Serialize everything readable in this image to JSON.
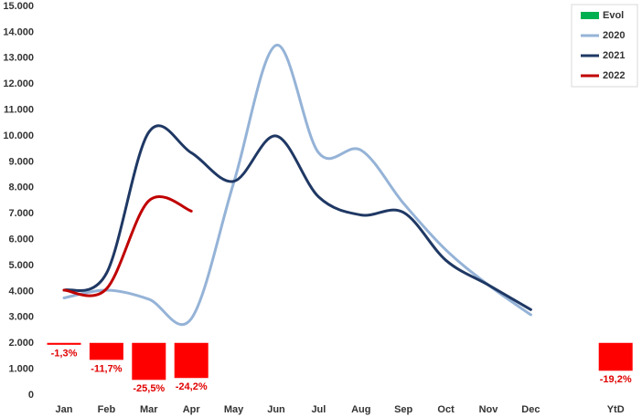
{
  "chart_data": {
    "type": "line",
    "categories": [
      "Jan",
      "Feb",
      "Mar",
      "Apr",
      "May",
      "Jun",
      "Jul",
      "Aug",
      "Sep",
      "Oct",
      "Nov",
      "Dec",
      null,
      "YtD"
    ],
    "series": [
      {
        "name": "Evol",
        "type": "bar",
        "axis": "y2",
        "color": "#00b050",
        "negative_color": "#ff0000",
        "values": [
          -1.3,
          -11.7,
          -25.5,
          -24.2,
          null,
          null,
          null,
          null,
          null,
          null,
          null,
          null,
          null,
          -19.2
        ],
        "value_labels": [
          "-1,3%",
          "-11,7%",
          "-25,5%",
          "-24,2%",
          null,
          null,
          null,
          null,
          null,
          null,
          null,
          null,
          null,
          "-19,2%"
        ]
      },
      {
        "name": "2020",
        "type": "line",
        "color": "#95b3d7",
        "values": [
          3750,
          4050,
          3700,
          2950,
          8200,
          13500,
          9350,
          9450,
          7400,
          5600,
          4250,
          3100,
          null,
          null
        ]
      },
      {
        "name": "2021",
        "type": "line",
        "color": "#1f3864",
        "values": [
          4050,
          4700,
          10150,
          9350,
          8250,
          10000,
          7650,
          6950,
          7050,
          5200,
          4250,
          3300,
          null,
          null
        ]
      },
      {
        "name": "2022",
        "type": "line",
        "color": "#c00000",
        "values": [
          4050,
          4100,
          7500,
          7100,
          null,
          null,
          null,
          null,
          null,
          null,
          null,
          null,
          null,
          null
        ]
      }
    ],
    "ylim": [
      0,
      15000
    ],
    "yticks": [
      0,
      {
        "value": 1000,
        "label": "1.000"
      },
      {
        "value": 2000,
        "label": "2.000"
      },
      {
        "value": 3000,
        "label": "3.000"
      },
      {
        "value": 4000,
        "label": "4.000"
      },
      {
        "value": 5000,
        "label": "5.000"
      },
      {
        "value": 6000,
        "label": "6.000"
      },
      {
        "value": 7000,
        "label": "7.000"
      },
      {
        "value": 8000,
        "label": "8.000"
      },
      {
        "value": 9000,
        "label": "9.000"
      },
      {
        "value": 10000,
        "label": "10.000"
      },
      {
        "value": 11000,
        "label": "11.000"
      },
      {
        "value": 12000,
        "label": "12.000"
      },
      {
        "value": 13000,
        "label": "13.000"
      },
      {
        "value": 14000,
        "label": "14.000"
      },
      {
        "value": 15000,
        "label": "15.000"
      }
    ],
    "y2lim": [
      -36,
      232
    ],
    "grid": false,
    "legend": "top-right"
  }
}
